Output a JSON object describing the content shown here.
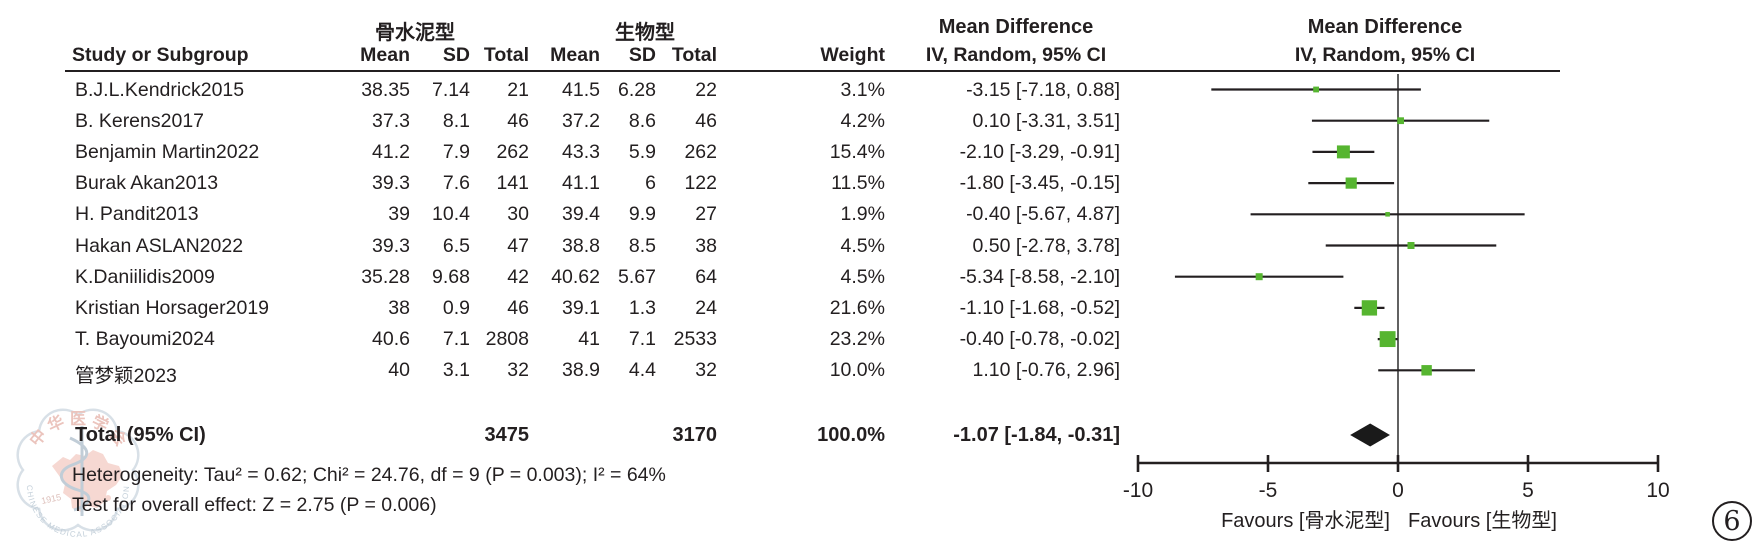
{
  "figure": {
    "group1": "骨水泥型",
    "group2": "生物型",
    "md_header_text_col": "Mean Difference",
    "md_header_plot_col": "Mean Difference",
    "iv_header_text_col": "IV, Random, 95% CI",
    "iv_header_plot_col": "IV, Random, 95% CI",
    "study_header": "Study or Subgroup",
    "col_mean": "Mean",
    "col_sd": "SD",
    "col_total": "Total",
    "col_weight": "Weight"
  },
  "chart_data": {
    "type": "forest",
    "effect_measure": "Mean Difference, IV, Random, 95% CI",
    "marker_color": "#56b530",
    "studies": [
      {
        "name": "B.J.L.Kendrick2015",
        "mean1": "38.35",
        "sd1": "7.14",
        "total1": "21",
        "mean2": "41.5",
        "sd2": "6.28",
        "total2": "22",
        "weight": "3.1%",
        "w": 3.1,
        "ci_text": "-3.15 [-7.18, 0.88]",
        "md": -3.15,
        "lo": -7.18,
        "hi": 0.88
      },
      {
        "name": "B. Kerens2017",
        "mean1": "37.3",
        "sd1": "8.1",
        "total1": "46",
        "mean2": "37.2",
        "sd2": "8.6",
        "total2": "46",
        "weight": "4.2%",
        "w": 4.2,
        "ci_text": "0.10 [-3.31, 3.51]",
        "md": 0.1,
        "lo": -3.31,
        "hi": 3.51
      },
      {
        "name": "Benjamin Martin2022",
        "mean1": "41.2",
        "sd1": "7.9",
        "total1": "262",
        "mean2": "43.3",
        "sd2": "5.9",
        "total2": "262",
        "weight": "15.4%",
        "w": 15.4,
        "ci_text": "-2.10 [-3.29, -0.91]",
        "md": -2.1,
        "lo": -3.29,
        "hi": -0.91
      },
      {
        "name": "Burak Akan2013",
        "mean1": "39.3",
        "sd1": "7.6",
        "total1": "141",
        "mean2": "41.1",
        "sd2": "6",
        "total2": "122",
        "weight": "11.5%",
        "w": 11.5,
        "ci_text": "-1.80 [-3.45, -0.15]",
        "md": -1.8,
        "lo": -3.45,
        "hi": -0.15
      },
      {
        "name": "H. Pandit2013",
        "mean1": "39",
        "sd1": "10.4",
        "total1": "30",
        "mean2": "39.4",
        "sd2": "9.9",
        "total2": "27",
        "weight": "1.9%",
        "w": 1.9,
        "ci_text": "-0.40 [-5.67, 4.87]",
        "md": -0.4,
        "lo": -5.67,
        "hi": 4.87
      },
      {
        "name": "Hakan ASLAN2022",
        "mean1": "39.3",
        "sd1": "6.5",
        "total1": "47",
        "mean2": "38.8",
        "sd2": "8.5",
        "total2": "38",
        "weight": "4.5%",
        "w": 4.5,
        "ci_text": "0.50 [-2.78, 3.78]",
        "md": 0.5,
        "lo": -2.78,
        "hi": 3.78
      },
      {
        "name": "K.Daniilidis2009",
        "mean1": "35.28",
        "sd1": "9.68",
        "total1": "42",
        "mean2": "40.62",
        "sd2": "5.67",
        "total2": "64",
        "weight": "4.5%",
        "w": 4.5,
        "ci_text": "-5.34 [-8.58, -2.10]",
        "md": -5.34,
        "lo": -8.58,
        "hi": -2.1
      },
      {
        "name": "Kristian Horsager2019",
        "mean1": "38",
        "sd1": "0.9",
        "total1": "46",
        "mean2": "39.1",
        "sd2": "1.3",
        "total2": "24",
        "weight": "21.6%",
        "w": 21.6,
        "ci_text": "-1.10 [-1.68, -0.52]",
        "md": -1.1,
        "lo": -1.68,
        "hi": -0.52
      },
      {
        "name": "T. Bayoumi2024",
        "mean1": "40.6",
        "sd1": "7.1",
        "total1": "2808",
        "mean2": "41",
        "sd2": "7.1",
        "total2": "2533",
        "weight": "23.2%",
        "w": 23.2,
        "ci_text": "-0.40 [-0.78, -0.02]",
        "md": -0.4,
        "lo": -0.78,
        "hi": -0.02
      },
      {
        "name": "管梦颖2023",
        "mean1": "40",
        "sd1": "3.1",
        "total1": "32",
        "mean2": "38.9",
        "sd2": "4.4",
        "total2": "32",
        "weight": "10.0%",
        "w": 10.0,
        "ci_text": "1.10 [-0.76, 2.96]",
        "md": 1.1,
        "lo": -0.76,
        "hi": 2.96
      }
    ],
    "total": {
      "label": "Total (95% CI)",
      "total1": "3475",
      "total2": "3170",
      "weight": "100.0%",
      "ci_text": "-1.07 [-1.84, -0.31]",
      "md": -1.07,
      "lo": -1.84,
      "hi": -0.31
    },
    "heterogeneity": "Heterogeneity: Tau² = 0.62; Chi² = 24.76, df = 9 (P = 0.003); I² = 64%",
    "overall_effect": "Test for overall effect: Z = 2.75 (P = 0.006)",
    "axis": {
      "min": -10,
      "max": 10,
      "ticks": [
        "-10",
        "-5",
        "0",
        "5",
        "10"
      ]
    },
    "favours_left": "Favours [骨水泥型]",
    "favours_right": "Favours [生物型]"
  },
  "annotation": {
    "circled_number": "6"
  },
  "watermark": {
    "cn_text": "中 华 医 学 会",
    "en_text": "CHINESE MEDICAL ASSOCIATION",
    "year": "1915"
  }
}
